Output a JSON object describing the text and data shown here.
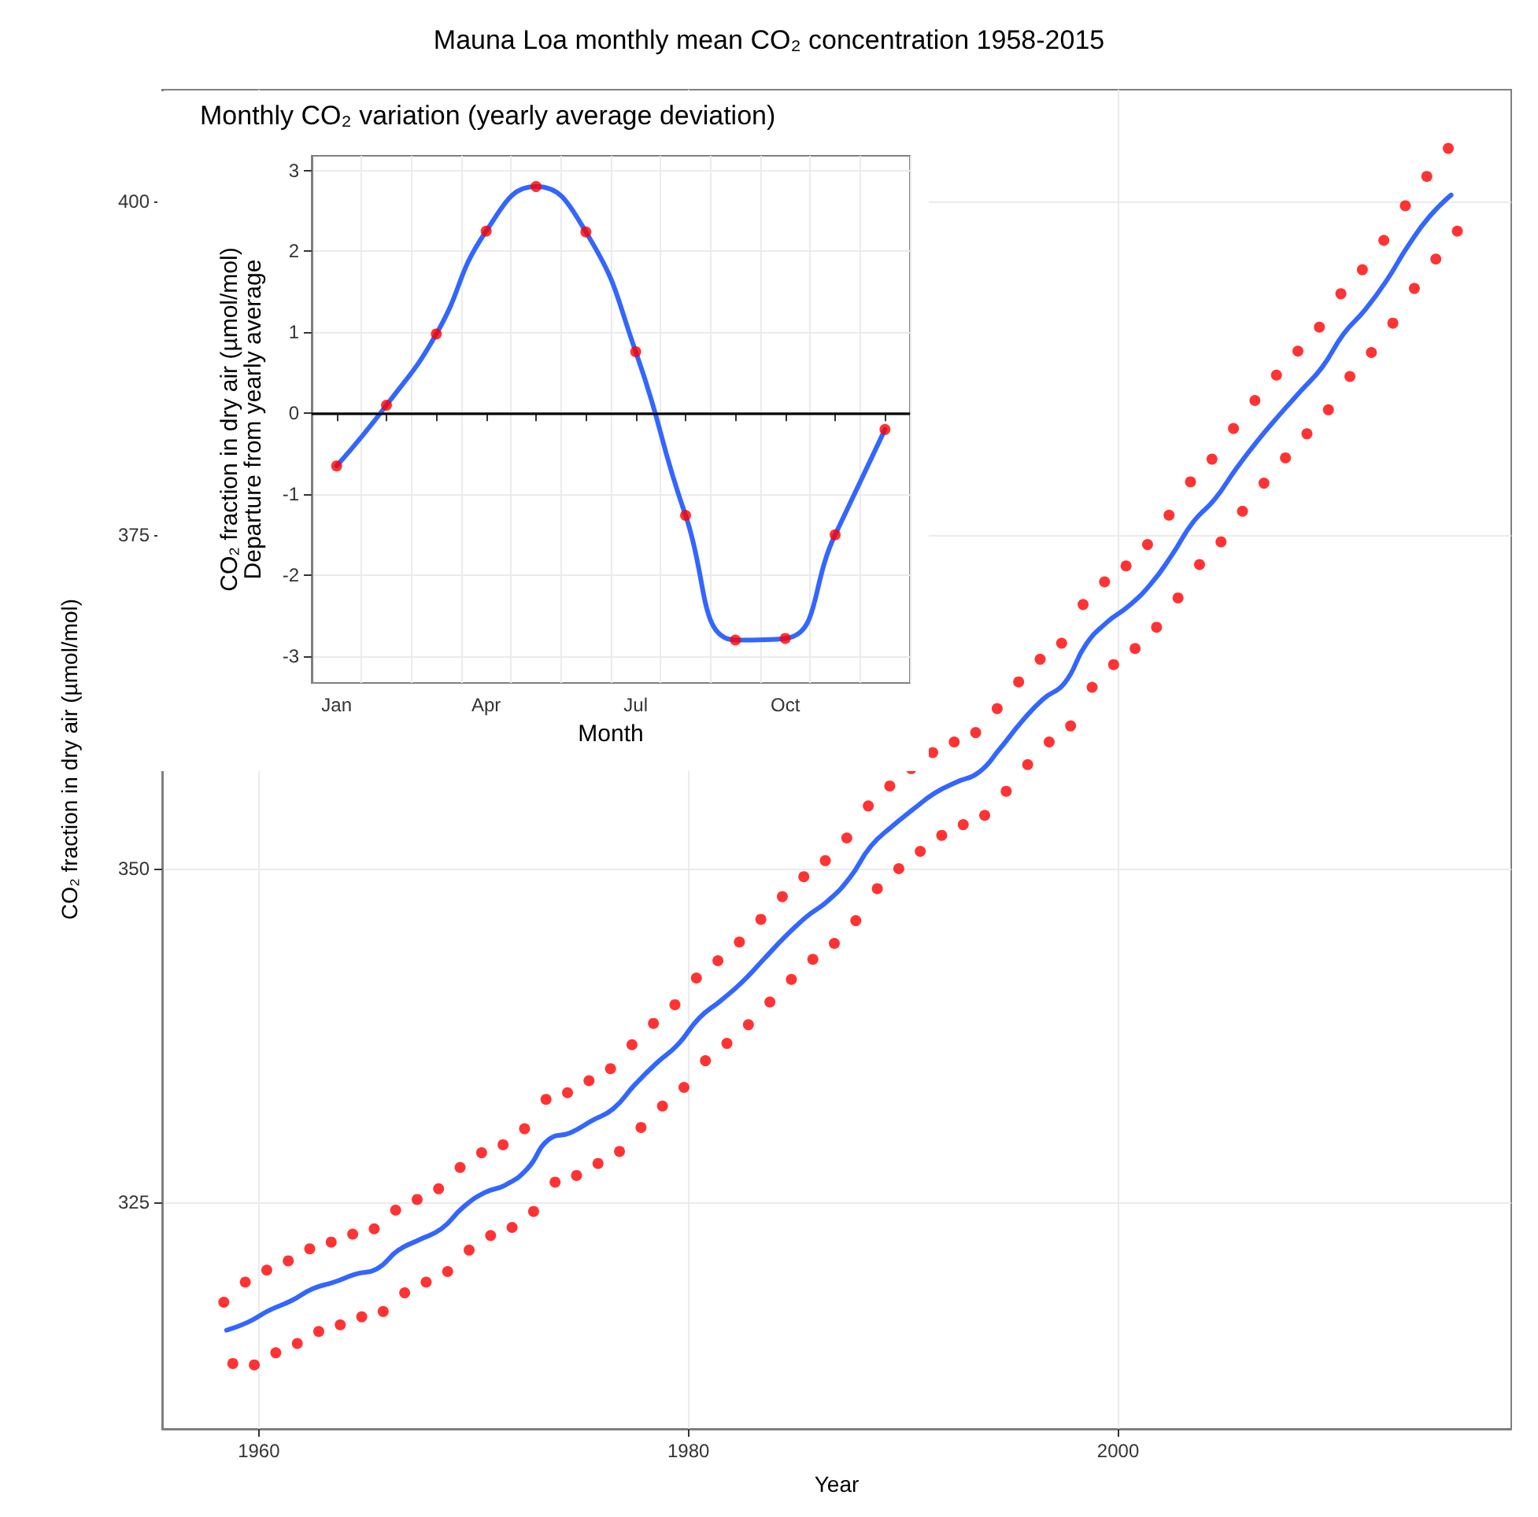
{
  "chart_data": [
    {
      "type": "scatter",
      "title": "Mauna Loa monthly mean CO₂ concentration 1958-2015",
      "xlabel": "Year",
      "ylabel": "CO₂ fraction in dry air (µmol/mol)",
      "xlim": [
        1955.5,
        2018.3
      ],
      "xticks": [
        1960,
        1980,
        2000
      ],
      "ylim": [
        308,
        408.4
      ],
      "yticks": [
        325,
        350,
        375,
        400
      ],
      "grid": true,
      "series": [
        {
          "color": "#ff0000",
          "marker": "circle",
          "x": [
            1958.37,
            1958.79,
            1959.37,
            1959.79,
            1960.37,
            1960.79,
            1961.37,
            1961.79,
            1962.37,
            1962.79,
            1963.37,
            1963.79,
            1964.37,
            1964.79,
            1965.37,
            1965.79,
            1966.37,
            1966.79,
            1967.37,
            1967.79,
            1968.37,
            1968.79,
            1969.37,
            1969.79,
            1970.37,
            1970.79,
            1971.37,
            1971.79,
            1972.37,
            1972.79,
            1973.37,
            1973.79,
            1974.37,
            1974.79,
            1975.37,
            1975.79,
            1976.37,
            1976.79,
            1977.37,
            1977.79,
            1978.37,
            1978.79,
            1979.37,
            1979.79,
            1980.37,
            1980.79,
            1981.37,
            1981.79,
            1982.37,
            1982.79,
            1983.37,
            1983.79,
            1984.37,
            1984.79,
            1985.37,
            1985.79,
            1986.37,
            1986.79,
            1987.37,
            1987.79,
            1988.37,
            1988.79,
            1989.37,
            1989.79,
            1990.37,
            1990.79,
            1991.37,
            1991.79,
            1992.37,
            1992.79,
            1993.37,
            1993.79,
            1994.37,
            1994.79,
            1995.37,
            1995.79,
            1996.37,
            1996.79,
            1997.37,
            1997.79,
            1998.37,
            1998.79,
            1999.37,
            1999.79,
            2000.37,
            2000.79,
            2001.37,
            2001.79,
            2002.37,
            2002.79,
            2003.37,
            2003.79,
            2004.37,
            2004.79,
            2005.37,
            2005.79,
            2006.37,
            2006.79,
            2007.37,
            2007.79,
            2008.37,
            2008.79,
            2009.37,
            2009.79,
            2010.37,
            2010.79,
            2011.37,
            2011.79,
            2012.37,
            2012.79,
            2013.37,
            2013.79,
            2014.37,
            2014.79,
            2015.37,
            2015.79
          ],
          "values": [
            317.5,
            312.9,
            319.0,
            312.8,
            319.9,
            313.7,
            320.6,
            314.4,
            321.5,
            315.3,
            322.0,
            315.8,
            322.6,
            316.4,
            323.0,
            316.8,
            324.4,
            318.2,
            325.2,
            319.0,
            326.0,
            319.8,
            327.6,
            321.4,
            328.7,
            322.5,
            329.3,
            323.1,
            330.5,
            324.3,
            332.7,
            326.5,
            333.2,
            327.0,
            334.1,
            327.9,
            335.0,
            328.8,
            336.8,
            330.6,
            338.4,
            332.2,
            339.8,
            333.6,
            341.8,
            335.6,
            343.1,
            336.9,
            344.5,
            338.3,
            346.2,
            340.0,
            347.9,
            341.7,
            349.4,
            343.2,
            350.6,
            344.4,
            352.3,
            346.1,
            354.7,
            348.5,
            356.2,
            350.0,
            357.5,
            351.3,
            358.7,
            352.5,
            359.5,
            353.3,
            360.2,
            354.0,
            362.0,
            355.8,
            364.0,
            357.8,
            365.7,
            359.5,
            366.9,
            360.7,
            369.8,
            363.6,
            371.5,
            365.3,
            372.7,
            366.5,
            374.3,
            368.1,
            376.5,
            370.3,
            379.0,
            372.8,
            380.7,
            374.5,
            383.0,
            376.8,
            385.1,
            378.9,
            387.0,
            380.8,
            388.8,
            382.6,
            390.6,
            384.4,
            393.1,
            386.9,
            394.9,
            388.7,
            397.1,
            390.9,
            399.7,
            393.5,
            401.9,
            395.7,
            404.0,
            397.8
          ]
        },
        {
          "type": "line",
          "color": "#3366ff",
          "x": [
            1958.5,
            1959.5,
            1960.5,
            1961.5,
            1962.5,
            1963.5,
            1964.5,
            1965.5,
            1966.5,
            1967.5,
            1968.5,
            1969.5,
            1970.5,
            1971.5,
            1972.5,
            1973.5,
            1974.5,
            1975.5,
            1976.5,
            1977.5,
            1978.5,
            1979.5,
            1980.5,
            1981.5,
            1982.5,
            1983.5,
            1984.5,
            1985.5,
            1986.5,
            1987.5,
            1988.5,
            1989.5,
            1990.5,
            1991.5,
            1992.5,
            1993.5,
            1994.5,
            1995.5,
            1996.5,
            1997.5,
            1998.5,
            1999.5,
            2000.5,
            2001.5,
            2002.5,
            2003.5,
            2004.5,
            2005.5,
            2006.5,
            2007.5,
            2008.5,
            2009.5,
            2010.5,
            2011.5,
            2012.5,
            2013.5,
            2014.5,
            2015.5
          ],
          "values": [
            315.4,
            316.0,
            316.9,
            317.6,
            318.5,
            319.0,
            319.6,
            320.0,
            321.4,
            322.2,
            323.0,
            324.6,
            325.7,
            326.3,
            327.5,
            329.7,
            330.2,
            331.1,
            332.0,
            333.8,
            335.4,
            336.8,
            338.8,
            340.1,
            341.5,
            343.2,
            344.9,
            346.4,
            347.6,
            349.3,
            351.7,
            353.2,
            354.5,
            355.7,
            356.5,
            357.2,
            359.0,
            361.0,
            362.7,
            363.9,
            366.8,
            368.5,
            369.7,
            371.3,
            373.5,
            376.0,
            377.7,
            380.0,
            382.1,
            384.0,
            385.8,
            387.6,
            390.1,
            391.9,
            394.1,
            396.7,
            398.9,
            400.5
          ]
        }
      ]
    },
    {
      "type": "scatter",
      "title": "Monthly CO₂ variation (yearly average deviation)",
      "xlabel": "Month",
      "ylabel": "CO₂ fraction in dry air (µmol/mol)\nDeparture from yearly average",
      "categories": [
        "Jan",
        null,
        null,
        "Apr",
        null,
        null,
        "Jul",
        null,
        null,
        "Oct",
        null,
        null
      ],
      "ylim": [
        -3.33,
        3.18
      ],
      "yticks": [
        -3,
        -2,
        -1,
        0,
        1,
        2,
        3
      ],
      "grid": true,
      "ref_lines": [
        {
          "axis": "y",
          "value": 0,
          "color": "#000000"
        }
      ],
      "series": [
        {
          "type": "line",
          "color": "#3366ff",
          "values": [
            -0.65,
            0.1,
            0.98,
            2.25,
            2.8,
            2.24,
            0.76,
            -1.26,
            -2.8,
            -2.78,
            -1.5,
            -0.2
          ]
        },
        {
          "color": "#ff0000",
          "marker": "circle",
          "values": [
            -0.65,
            0.1,
            0.98,
            2.25,
            2.8,
            2.24,
            0.76,
            -1.26,
            -2.8,
            -2.78,
            -1.5,
            -0.2
          ]
        }
      ]
    }
  ]
}
